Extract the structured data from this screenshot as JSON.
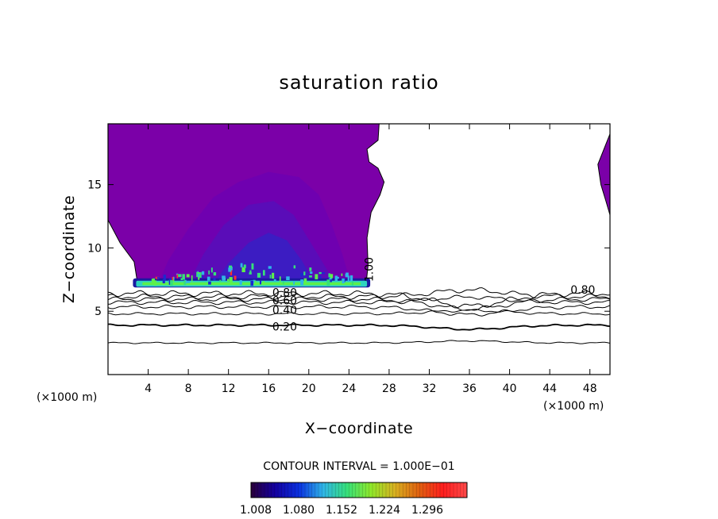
{
  "chart_data": {
    "type": "contour",
    "title": "saturation ratio",
    "xlabel": "X−coordinate",
    "ylabel": "Z−coordinate",
    "x_unit_label": "(×1000 m)",
    "z_unit_label": "(×1000 m)",
    "xlim": [
      0,
      50
    ],
    "ylim": [
      0,
      19.8
    ],
    "x_ticks": [
      {
        "value": 4,
        "label": "4"
      },
      {
        "value": 8,
        "label": "8"
      },
      {
        "value": 12,
        "label": "12"
      },
      {
        "value": 16,
        "label": "16"
      },
      {
        "value": 20,
        "label": "20"
      },
      {
        "value": 24,
        "label": "24"
      },
      {
        "value": 28,
        "label": "28"
      },
      {
        "value": 32,
        "label": "32"
      },
      {
        "value": 36,
        "label": "36"
      },
      {
        "value": 40,
        "label": "40"
      },
      {
        "value": 44,
        "label": "44"
      },
      {
        "value": 48,
        "label": "48"
      }
    ],
    "y_ticks": [
      {
        "value": 5,
        "label": "5"
      },
      {
        "value": 10,
        "label": "10"
      },
      {
        "value": 15,
        "label": "15"
      }
    ],
    "contour_interval_text": "CONTOUR INTERVAL = 1.000E−01",
    "contour_lines": [
      {
        "level": 0.1,
        "z": 2.5,
        "amp": 0.12
      },
      {
        "level": 0.2,
        "z": 3.9,
        "amp": 0.15,
        "thick": true
      },
      {
        "level": 0.3,
        "z": 4.8,
        "amp": 0.2
      },
      {
        "level": 0.4,
        "z": 5.35,
        "amp": 0.28
      },
      {
        "level": 0.5,
        "z": 5.7,
        "amp": 0.32
      },
      {
        "level": 0.6,
        "z": 5.95,
        "amp": 0.35
      },
      {
        "level": 0.7,
        "z": 6.15,
        "amp": 0.4
      },
      {
        "level": 0.8,
        "z": 6.4,
        "amp": 0.45
      }
    ],
    "contour_labels": [
      {
        "text": "0.20",
        "x": 17.6,
        "z": 3.8
      },
      {
        "text": "0.40",
        "x": 17.6,
        "z": 5.1
      },
      {
        "text": "0.60",
        "x": 17.6,
        "z": 5.85
      },
      {
        "text": "0.80",
        "x": 17.6,
        "z": 6.5
      },
      {
        "text": "0.80",
        "x": 47.3,
        "z": 6.7
      },
      {
        "text": "1.00",
        "x": 26.0,
        "z": 8.3,
        "rotate": -90
      }
    ],
    "shaded_regions": [
      {
        "name": "supersaturated-plume",
        "level": 1.008,
        "color": "#7b00a8",
        "outline_xz": [
          [
            0,
            12.2
          ],
          [
            1.2,
            10.4
          ],
          [
            2.6,
            8.9
          ],
          [
            2.9,
            7.4
          ],
          [
            3.1,
            7.1
          ],
          [
            25.7,
            7.1
          ],
          [
            25.9,
            8.6
          ],
          [
            25.8,
            10.8
          ],
          [
            26.2,
            12.8
          ],
          [
            27.1,
            14.2
          ],
          [
            27.5,
            15.2
          ],
          [
            26.9,
            16.3
          ],
          [
            26.0,
            16.8
          ],
          [
            25.8,
            17.8
          ],
          [
            26.9,
            18.5
          ],
          [
            27.0,
            19.8
          ],
          [
            0,
            19.8
          ]
        ]
      },
      {
        "name": "right-edge-patch",
        "level": 1.008,
        "color": "#7b00a8",
        "outline_xz": [
          [
            50,
            19.0
          ],
          [
            49.4,
            17.8
          ],
          [
            48.8,
            16.6
          ],
          [
            49.1,
            15.0
          ],
          [
            49.6,
            13.7
          ],
          [
            50,
            12.6
          ]
        ]
      },
      {
        "name": "inner-dome-1",
        "level": 1.02,
        "color": "#6f00b0",
        "outline_xz": [
          [
            5,
            7.2
          ],
          [
            6,
            9.0
          ],
          [
            8,
            11.5
          ],
          [
            10.5,
            14
          ],
          [
            13,
            15.2
          ],
          [
            16,
            16
          ],
          [
            19,
            15.6
          ],
          [
            21,
            14.2
          ],
          [
            22.3,
            11.8
          ],
          [
            23.3,
            9.6
          ],
          [
            24.2,
            7.2
          ]
        ]
      },
      {
        "name": "inner-dome-2",
        "level": 1.04,
        "color": "#5a0cb8",
        "outline_xz": [
          [
            8,
            7.2
          ],
          [
            9.5,
            9.5
          ],
          [
            11.5,
            11.8
          ],
          [
            14,
            13.4
          ],
          [
            16.5,
            13.7
          ],
          [
            18.5,
            12.6
          ],
          [
            20.2,
            10.4
          ],
          [
            21.8,
            8.3
          ],
          [
            22.6,
            7.2
          ]
        ]
      },
      {
        "name": "inner-dome-3",
        "level": 1.06,
        "color": "#3c1cc2",
        "outline_xz": [
          [
            10.5,
            7.2
          ],
          [
            12,
            8.8
          ],
          [
            14,
            10.4
          ],
          [
            16,
            11.2
          ],
          [
            17.8,
            10.6
          ],
          [
            19.3,
            9.0
          ],
          [
            20.6,
            7.2
          ]
        ]
      }
    ],
    "cloud_base_band": {
      "x_start": 2.8,
      "x_end": 25.8,
      "z_bottom": 7.0,
      "z_top": 7.35
    },
    "colorbar": {
      "colormap": [
        "#2a003a",
        "#1400a0",
        "#0a30e0",
        "#2fb4e8",
        "#36e07a",
        "#8fe82a",
        "#d8b020",
        "#e06010",
        "#ff1e1e",
        "#ff4a4a"
      ],
      "tick_labels": [
        "1.008",
        "1.080",
        "1.152",
        "1.224",
        "1.296"
      ]
    },
    "legend": "none",
    "grid": false
  }
}
